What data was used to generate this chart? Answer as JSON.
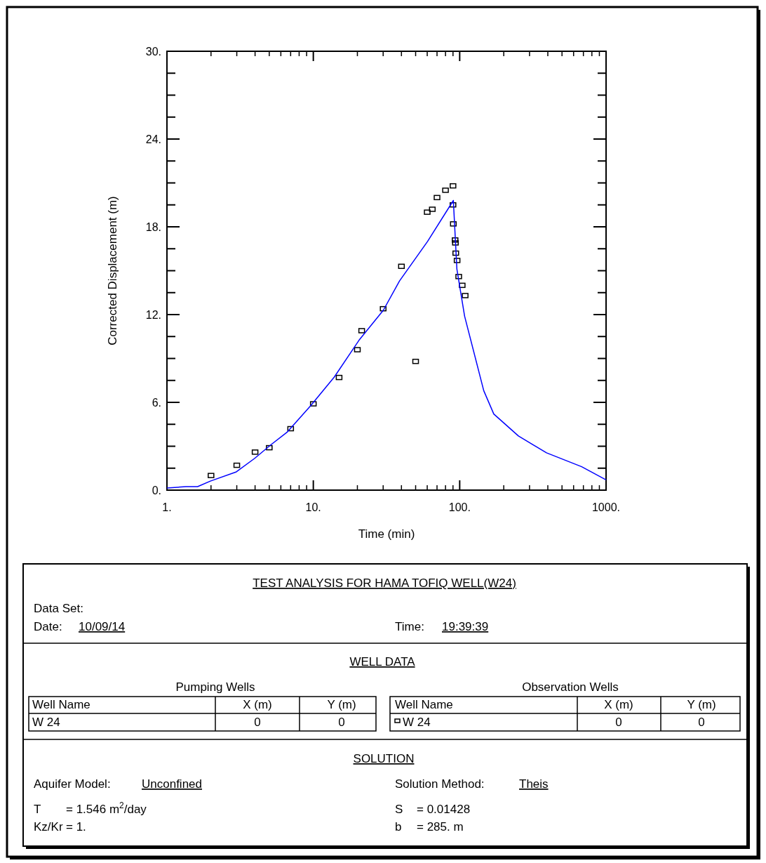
{
  "chart_data": {
    "type": "scatter",
    "xlabel": "Time (min)",
    "ylabel": "Corrected Displacement (m)",
    "log": "x",
    "xlim": [
      1,
      1000
    ],
    "xticks": [
      {
        "value": 1,
        "label": "1."
      },
      {
        "value": 10,
        "label": "10."
      },
      {
        "value": 100,
        "label": "100."
      },
      {
        "value": 1000,
        "label": "1000."
      }
    ],
    "ylim": [
      0,
      30
    ],
    "yticks": [
      {
        "value": 0,
        "label": "0."
      },
      {
        "value": 1.5,
        "label": null
      },
      {
        "value": 3,
        "label": null
      },
      {
        "value": 4.5,
        "label": null
      },
      {
        "value": 6,
        "label": "6."
      },
      {
        "value": 7.5,
        "label": null
      },
      {
        "value": 9,
        "label": null
      },
      {
        "value": 10.5,
        "label": null
      },
      {
        "value": 12,
        "label": "12."
      },
      {
        "value": 13.5,
        "label": null
      },
      {
        "value": 15,
        "label": null
      },
      {
        "value": 16.5,
        "label": null
      },
      {
        "value": 18,
        "label": "18."
      },
      {
        "value": 19.5,
        "label": null
      },
      {
        "value": 21,
        "label": null
      },
      {
        "value": 22.5,
        "label": null
      },
      {
        "value": 24,
        "label": "24."
      },
      {
        "value": 25.5,
        "label": null
      },
      {
        "value": 27,
        "label": null
      },
      {
        "value": 28.5,
        "label": null
      },
      {
        "value": 30,
        "label": "30."
      }
    ],
    "series": [
      {
        "color": "#000000",
        "marker": "square",
        "x": [
          2,
          3,
          4,
          5,
          7,
          10,
          15,
          20,
          21.4,
          30,
          40,
          50,
          60,
          65,
          70,
          80,
          90,
          90,
          90.5,
          93,
          93.5,
          94,
          96,
          98.5,
          104,
          109
        ],
        "values": [
          1.0,
          1.7,
          2.6,
          2.9,
          4.2,
          5.9,
          7.7,
          9.6,
          10.9,
          12.4,
          15.3,
          8.8,
          19.0,
          19.2,
          20.0,
          20.5,
          20.8,
          19.5,
          18.2,
          17.1,
          16.9,
          16.2,
          15.7,
          14.6,
          14.0,
          13.3
        ]
      },
      {
        "type": "line",
        "color": "#0000ff",
        "marker": "none",
        "x": [
          1,
          1.35,
          1.62,
          1.98,
          2.98,
          3.96,
          5.16,
          6.65,
          9.57,
          13.9,
          20.7,
          30.1,
          38.8,
          60.3,
          90.5,
          95.7,
          108,
          146,
          171,
          252,
          392,
          681,
          1000
        ],
        "values": [
          0.14,
          0.24,
          0.24,
          0.62,
          1.25,
          2.16,
          3.12,
          3.98,
          5.76,
          7.73,
          10.3,
          12.3,
          14.3,
          17.0,
          19.8,
          15.1,
          11.9,
          6.8,
          5.2,
          3.7,
          2.55,
          1.6,
          0.7
        ]
      }
    ],
    "annotations": [
      "TEST ANALYSIS FOR HAMA TOFIQ WELL(W24)",
      "Data Set:",
      "Date:",
      "10/09/14",
      "Time:",
      "19:39:39",
      "WELL DATA",
      "Pumping Wells",
      "Observation Wells",
      "Well Name",
      "X (m)",
      "Y (m)",
      "W 24",
      "0",
      "0",
      "Well Name",
      "X (m)",
      "Y (m)",
      "W 24",
      "0",
      "0",
      "SOLUTION",
      "Aquifer Model:",
      "Unconfined",
      "Solution Method:",
      "Theis",
      "T",
      "= 1.546 m$^{2}$/day",
      "Kz/Kr",
      "= 1.",
      "S",
      "= 0.01428",
      "b",
      "= 285. m"
    ]
  }
}
